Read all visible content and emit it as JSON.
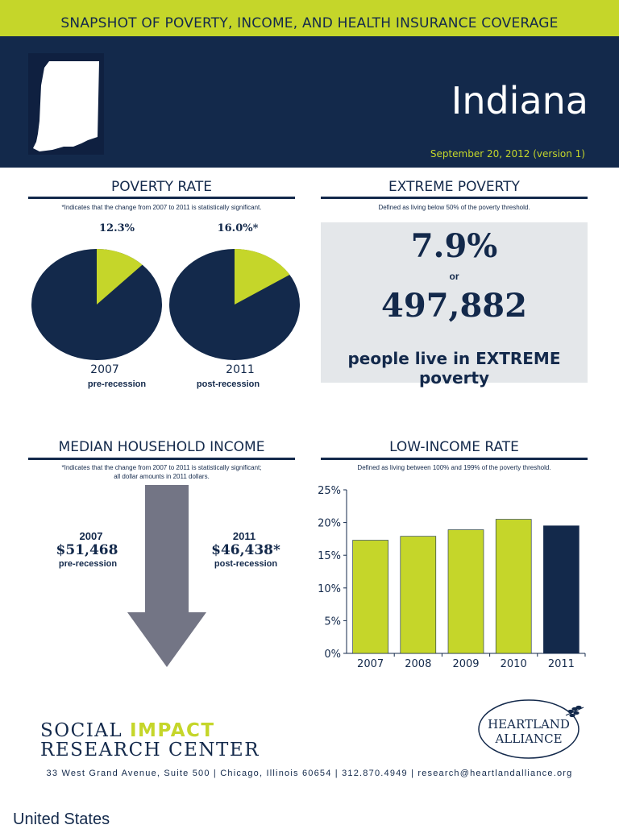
{
  "banner": {
    "title": "SNAPSHOT OF POVERTY, INCOME, AND HEALTH INSURANCE COVERAGE"
  },
  "header": {
    "state": "Indiana",
    "date": "September 20, 2012 (version 1)"
  },
  "colors": {
    "navy": "#13294b",
    "lime": "#c5d62a",
    "gray_arrow": "#737585",
    "panel": "#e4e7ea"
  },
  "poverty": {
    "title": "POVERTY RATE",
    "note": "*Indicates that the change from 2007 to 2011 is statistically significant.",
    "charts": [
      {
        "value_label": "12.3%",
        "year": "2007",
        "period": "pre-recession",
        "share": 0.123
      },
      {
        "value_label": "16.0%*",
        "year": "2011",
        "period": "post-recession",
        "share": 0.16
      }
    ]
  },
  "extreme": {
    "title": "EXTREME POVERTY",
    "note": "Defined as living below 50% of the poverty threshold.",
    "percent": "7.9%",
    "or": "or",
    "count": "497,882",
    "caption": "people live in EXTREME poverty"
  },
  "income": {
    "title": "MEDIAN HOUSEHOLD INCOME",
    "note_line1": "*Indicates that the change from 2007 to 2011 is statistically significant;",
    "note_line2": "all dollar amounts in 2011 dollars.",
    "left": {
      "year": "2007",
      "amount": "$51,468",
      "period": "pre-recession"
    },
    "right": {
      "year": "2011",
      "amount": "$46,438*",
      "period": "post-recession"
    }
  },
  "lowincome": {
    "title": "LOW-INCOME RATE",
    "note": "Defined as living between 100% and 199% of the poverty threshold."
  },
  "chart_data": {
    "type": "bar",
    "categories": [
      "2007",
      "2008",
      "2009",
      "2010",
      "2011"
    ],
    "values": [
      17.3,
      17.9,
      18.9,
      20.5,
      19.5
    ],
    "ylim": [
      0,
      25
    ],
    "yticks": [
      "0%",
      "5%",
      "10%",
      "15%",
      "20%",
      "25%"
    ],
    "colors": [
      "#c5d62a",
      "#c5d62a",
      "#c5d62a",
      "#c5d62a",
      "#13294b"
    ],
    "grid": false
  },
  "footer": {
    "org_line1a": "SOCIAL ",
    "org_line1b": "IMPACT",
    "org_line2": "RESEARCH CENTER",
    "partner_line1": "HEARTLAND",
    "partner_line2": "ALLIANCE",
    "address": "33 West Grand Avenue, Suite 500 | Chicago, Illinois 60654 | 312.870.4949 | research@heartlandalliance.org"
  },
  "bottom_text": "United States"
}
